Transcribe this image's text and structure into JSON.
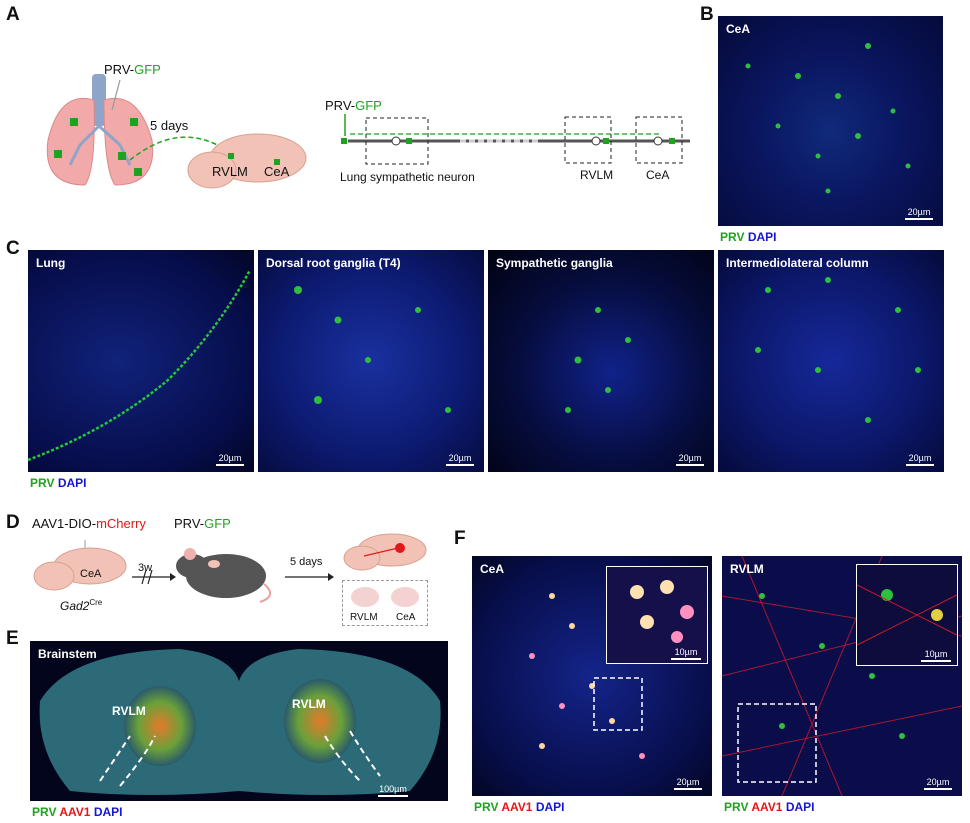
{
  "panels": {
    "A": {
      "letter": "A",
      "prv_prefix": "PRV-",
      "prv_suffix": "GFP",
      "days": "5 days",
      "rvlm": "RVLM",
      "cea": "CeA",
      "lung_neuron": "Lung sympathetic neuron"
    },
    "B": {
      "letter": "B",
      "title": "CeA",
      "scale": "20µm"
    },
    "C": {
      "letter": "C",
      "images": [
        {
          "title": "Lung",
          "scale": "20µm"
        },
        {
          "title": "Dorsal root ganglia (T4)",
          "scale": "20µm"
        },
        {
          "title": "Sympathetic ganglia",
          "scale": "20µm"
        },
        {
          "title": "Intermediolateral column",
          "scale": "20µm"
        }
      ]
    },
    "D": {
      "letter": "D",
      "aav_prefix": "AAV1-DIO-",
      "aav_suffix": "mCherry",
      "cea": "CeA",
      "gad2": "Gad2",
      "gad2_sup": "Cre",
      "weeks": "3w",
      "prv_prefix": "PRV-",
      "prv_suffix": "GFP",
      "days": "5 days",
      "rvlm": "RVLM",
      "cea2": "CeA"
    },
    "E": {
      "letter": "E",
      "title": "Brainstem",
      "rvlm_left": "RVLM",
      "rvlm_right": "RVLM",
      "scale": "100µm"
    },
    "F": {
      "letter": "F",
      "left": {
        "title": "CeA",
        "scale": "20µm",
        "inset_scale": "10µm"
      },
      "right": {
        "title": "RVLM",
        "scale": "20µm",
        "inset_scale": "10µm"
      }
    }
  },
  "legend": {
    "prv": "PRV",
    "dapi": "DAPI",
    "aav1": "AAV1"
  },
  "colors": {
    "gfp": "#1fa21f",
    "dapi": "#1515d8",
    "mcherry": "#e01818"
  }
}
